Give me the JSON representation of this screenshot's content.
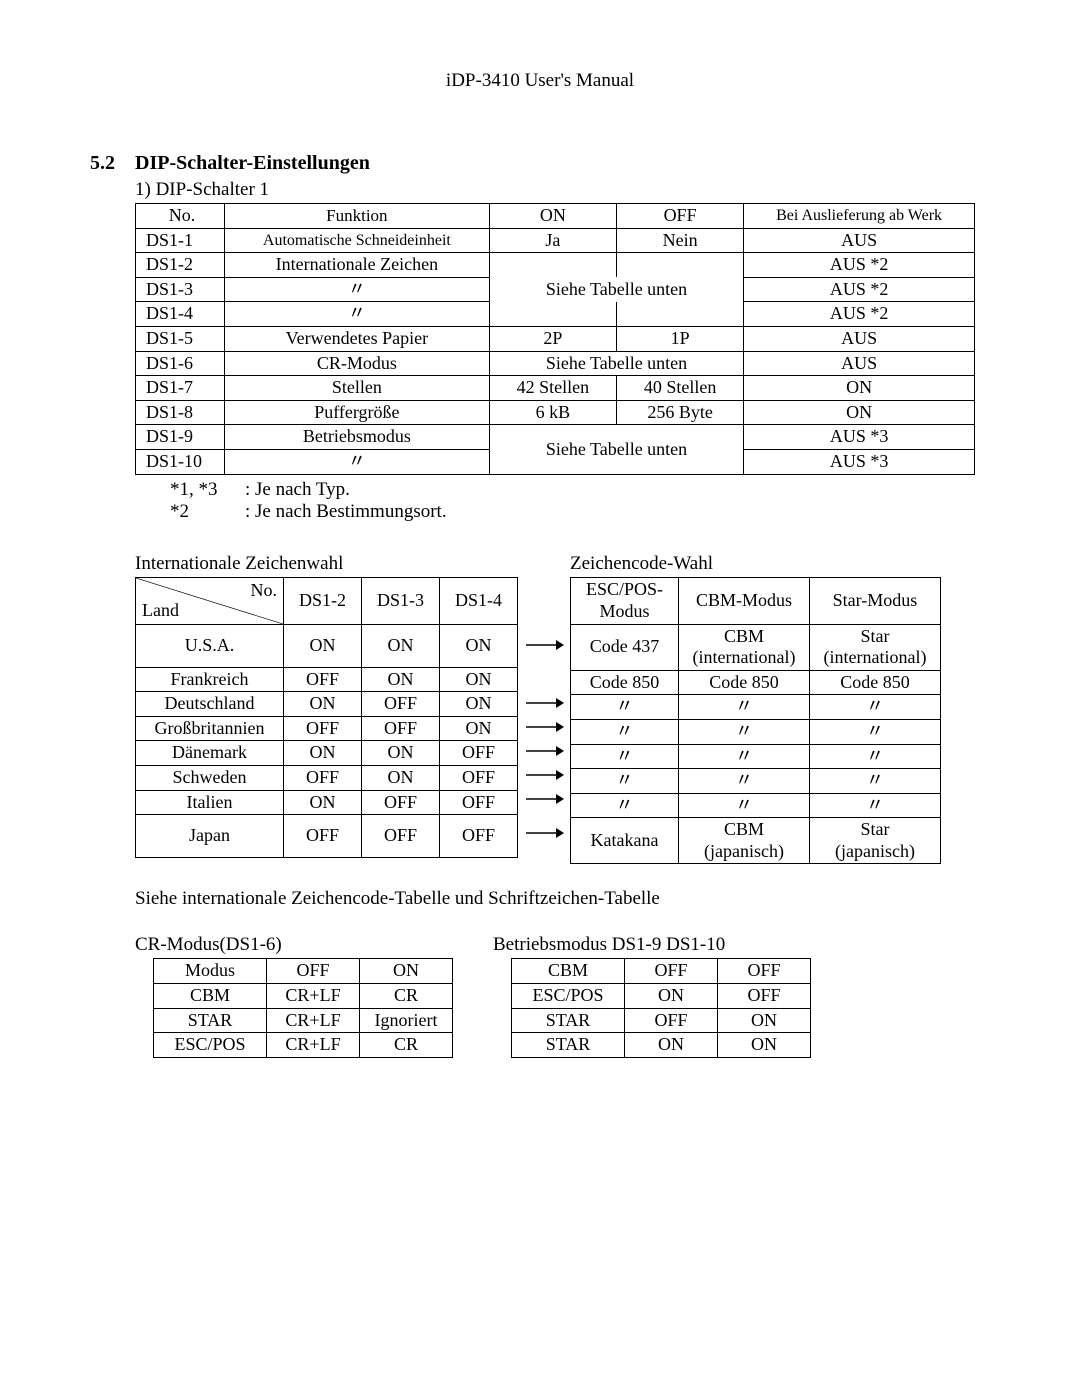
{
  "colors": {
    "text": "#000000",
    "background": "#ffffff",
    "border": "#000000"
  },
  "header": {
    "title": "iDP-3410 User's Manual"
  },
  "section": {
    "number": "5.2",
    "title": "DIP-Schalter-Einstellungen"
  },
  "dip": {
    "subtitle": "1)  DIP-Schalter 1",
    "headers": {
      "no": "No.",
      "func": "Funktion",
      "on": "ON",
      "off": "OFF",
      "default": "Bei Auslieferung ab Werk"
    },
    "rows": [
      {
        "no": "DS1-1",
        "func": "Automatische Schneideinheit",
        "small": true,
        "on": "Ja",
        "off": "Nein",
        "span": false,
        "def": "AUS"
      },
      {
        "no": "DS1-2",
        "func": "Internationale Zeichen",
        "small": false,
        "on": "",
        "off": "",
        "span": false,
        "def": "AUS *2"
      },
      {
        "no": "DS1-3",
        "func": "〃",
        "small": false,
        "merged": "Siehe Tabelle unten",
        "span": true,
        "def": "AUS *2"
      },
      {
        "no": "DS1-4",
        "func": "〃",
        "small": false,
        "on": "",
        "off": "",
        "span": false,
        "def": "AUS *2"
      },
      {
        "no": "DS1-5",
        "func": "Verwendetes Papier",
        "small": false,
        "on": "2P",
        "off": "1P",
        "span": false,
        "def": "AUS"
      },
      {
        "no": "DS1-6",
        "func": "CR-Modus",
        "small": false,
        "merged": "Siehe Tabelle unten",
        "span": true,
        "def": "AUS"
      },
      {
        "no": "DS1-7",
        "func": "Stellen",
        "small": false,
        "on": "42 Stellen",
        "off": "40 Stellen",
        "span": false,
        "def": "ON"
      },
      {
        "no": "DS1-8",
        "func": "Puffergröße",
        "small": false,
        "on": "6 kB",
        "off": "256 Byte",
        "span": false,
        "def": "ON"
      },
      {
        "no": "DS1-9",
        "func": "Betriebsmodus",
        "small": false,
        "merged_start": true,
        "span": true,
        "def": "AUS *3"
      },
      {
        "no": "DS1-10",
        "func": "〃",
        "small": false,
        "merged_cont": true,
        "span": true,
        "def": "AUS *3"
      }
    ],
    "merged_9_10": "Siehe Tabelle unten"
  },
  "footnotes": [
    {
      "key": "*1, *3",
      "text": ": Je nach Typ."
    },
    {
      "key": "*2",
      "text": ": Je nach Bestimmungsort."
    }
  ],
  "intl": {
    "title": "Internationale Zeichenwahl",
    "header": {
      "no": "No.",
      "land": "Land",
      "cols": [
        "DS1-2",
        "DS1-3",
        "DS1-4"
      ]
    },
    "rows": [
      {
        "land": "U.S.A.",
        "v": [
          "ON",
          "ON",
          "ON"
        ],
        "arrow": true,
        "tall": true
      },
      {
        "land": "Frankreich",
        "v": [
          "OFF",
          "ON",
          "ON"
        ],
        "arrow": false,
        "tall": false
      },
      {
        "land": "Deutschland",
        "v": [
          "ON",
          "OFF",
          "ON"
        ],
        "arrow": true,
        "tall": false
      },
      {
        "land": "Großbritannien",
        "v": [
          "OFF",
          "OFF",
          "ON"
        ],
        "arrow": true,
        "tall": false
      },
      {
        "land": "Dänemark",
        "v": [
          "ON",
          "ON",
          "OFF"
        ],
        "arrow": true,
        "tall": false
      },
      {
        "land": "Schweden",
        "v": [
          "OFF",
          "ON",
          "OFF"
        ],
        "arrow": true,
        "tall": false
      },
      {
        "land": "Italien",
        "v": [
          "ON",
          "OFF",
          "OFF"
        ],
        "arrow": true,
        "tall": false
      },
      {
        "land": "Japan",
        "v": [
          "OFF",
          "OFF",
          "OFF"
        ],
        "arrow": true,
        "tall": true
      }
    ]
  },
  "code": {
    "title": "Zeichencode-Wahl",
    "header": [
      "ESC/POS-\nModus",
      "CBM-Modus",
      "Star-Modus"
    ],
    "rows": [
      {
        "c": [
          "Code 437",
          "CBM\n(international)",
          "Star\n(international)"
        ],
        "tall": true
      },
      {
        "c": [
          "Code 850",
          "Code 850",
          "Code 850"
        ],
        "tall": false
      },
      {
        "c": [
          "〃",
          "〃",
          "〃"
        ],
        "tall": false
      },
      {
        "c": [
          "〃",
          "〃",
          "〃"
        ],
        "tall": false
      },
      {
        "c": [
          "〃",
          "〃",
          "〃"
        ],
        "tall": false
      },
      {
        "c": [
          "〃",
          "〃",
          "〃"
        ],
        "tall": false
      },
      {
        "c": [
          "〃",
          "〃",
          "〃"
        ],
        "tall": false
      },
      {
        "c": [
          "Katakana",
          "CBM\n(japanisch)",
          "Star\n(japanisch)"
        ],
        "tall": true
      }
    ]
  },
  "mid_note": "Siehe internationale Zeichencode-Tabelle und Schriftzeichen-Tabelle",
  "cr": {
    "title": "CR-Modus(DS1-6)",
    "header": [
      "Modus",
      "OFF",
      "ON"
    ],
    "rows": [
      [
        "CBM",
        "CR+LF",
        "CR"
      ],
      [
        "STAR",
        "CR+LF",
        "Ignoriert"
      ],
      [
        "ESC/POS",
        "CR+LF",
        "CR"
      ]
    ]
  },
  "op": {
    "title": "Betriebsmodus  DS1-9     DS1-10",
    "rows": [
      [
        "CBM",
        "OFF",
        "OFF"
      ],
      [
        "ESC/POS",
        "ON",
        "OFF"
      ],
      [
        "STAR",
        "OFF",
        "ON"
      ],
      [
        "STAR",
        "ON",
        "ON"
      ]
    ]
  }
}
